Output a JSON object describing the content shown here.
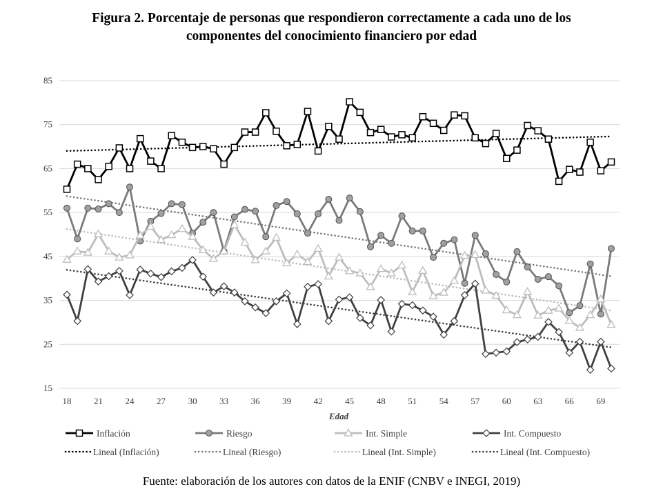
{
  "chart_data": {
    "type": "line",
    "title": "Figura 2. Porcentaje de personas que respondieron correctamente a cada uno de los componentes del conocimiento financiero por edad",
    "title_lines": [
      "Figura 2. Porcentaje de personas que respondieron correctamente a cada uno de los",
      "componentes del conocimiento financiero por edad"
    ],
    "xlabel": "Edad",
    "ylabel": "",
    "xlim": [
      18,
      70
    ],
    "ylim": [
      15,
      85
    ],
    "x_ticks": [
      18,
      21,
      24,
      27,
      30,
      33,
      36,
      39,
      42,
      45,
      48,
      51,
      54,
      57,
      60,
      63,
      66,
      69
    ],
    "y_ticks": [
      15,
      25,
      35,
      45,
      55,
      65,
      75,
      85
    ],
    "grid": "horizontal",
    "legend_position": "bottom",
    "x": [
      18,
      19,
      20,
      21,
      22,
      23,
      24,
      25,
      26,
      27,
      28,
      29,
      30,
      31,
      32,
      33,
      34,
      35,
      36,
      37,
      38,
      39,
      40,
      41,
      42,
      43,
      44,
      45,
      46,
      47,
      48,
      49,
      50,
      51,
      52,
      53,
      54,
      55,
      56,
      57,
      58,
      59,
      60,
      61,
      62,
      63,
      64,
      65,
      66,
      67,
      68,
      69,
      70
    ],
    "series": [
      {
        "name": "Inflación",
        "marker": "square",
        "color": "#000000",
        "trend_name": "Lineal (Inflación)",
        "values": [
          60.3,
          66,
          65,
          62.5,
          65.5,
          69.7,
          65,
          71.8,
          66.7,
          65,
          72.5,
          71,
          69.8,
          70,
          69.5,
          66,
          69.8,
          73.3,
          73.3,
          77.7,
          73.5,
          70.2,
          70.5,
          78,
          69,
          74.6,
          71.7,
          80.2,
          77.8,
          73.2,
          73.9,
          72.2,
          72.7,
          72,
          76.8,
          75.3,
          73.7,
          77.2,
          77,
          72,
          70.7,
          73,
          67.3,
          69.2,
          74.8,
          73.6,
          71.7,
          62.1,
          64.8,
          64.2,
          71,
          64.5,
          66.5
        ]
      },
      {
        "name": "Riesgo",
        "marker": "circle",
        "color": "#7a7a7a",
        "trend_name": "Lineal (Riesgo)",
        "values": [
          56,
          49,
          56,
          55.8,
          57,
          55,
          60.8,
          48.5,
          53,
          54.8,
          57,
          56.8,
          50.3,
          52.8,
          55,
          46.2,
          54,
          55.7,
          55.3,
          49.5,
          56.6,
          57.5,
          54.7,
          50.3,
          54.7,
          58,
          53.2,
          58.3,
          55.2,
          47.2,
          49.8,
          48,
          54.2,
          50.8,
          50.8,
          44.8,
          48,
          48.8,
          38.9,
          49.8,
          45.6,
          40.9,
          39.2,
          46.1,
          42.6,
          39.8,
          40.4,
          38.3,
          32.2,
          33.8,
          43.3,
          31.9,
          46.8
        ]
      },
      {
        "name": "Int. Simple",
        "marker": "triangle",
        "color": "#bdbdbd",
        "trend_name": "Lineal (Int. Simple)",
        "values": [
          44.3,
          46.2,
          45.9,
          50.1,
          46.2,
          44.8,
          45.3,
          49.8,
          51.8,
          48.8,
          49.9,
          51.3,
          49.5,
          46.5,
          44.5,
          46.2,
          52.2,
          48.2,
          44.2,
          46.2,
          49.3,
          43.5,
          45.5,
          43.8,
          46.8,
          40.5,
          44.8,
          41.7,
          41.2,
          38.1,
          42.2,
          41.2,
          43,
          36.9,
          41.8,
          36,
          36.8,
          39.5,
          45.2,
          45.4,
          37.3,
          36.1,
          32.8,
          31.7,
          37,
          31.6,
          32.7,
          33.2,
          30.4,
          28.8,
          31.7,
          35.3,
          29.5
        ]
      },
      {
        "name": "Int. Compuesto",
        "marker": "diamond",
        "color": "#404040",
        "trend_name": "Lineal (Int. Compuesto)",
        "values": [
          36.3,
          30.3,
          42.1,
          39.3,
          40.5,
          41.7,
          36.2,
          42,
          41.1,
          40.3,
          41.6,
          42.4,
          44.2,
          40.4,
          36.8,
          38.2,
          36.8,
          34.8,
          33.4,
          32.1,
          34.8,
          36.6,
          29.6,
          38.1,
          38.7,
          30.3,
          35.2,
          35.7,
          31,
          29.3,
          35.1,
          27.9,
          34.2,
          33.9,
          32.7,
          31.3,
          27.2,
          30.3,
          36.2,
          38.8,
          22.8,
          23.1,
          23.4,
          25.5,
          26.1,
          26.7,
          30.1,
          27.8,
          23.1,
          25.6,
          19.2,
          25.6,
          19.5
        ]
      }
    ]
  },
  "footer": "Fuente: elaboración de los autores con datos de la ENIF  (CNBV e INEGI, 2019)"
}
